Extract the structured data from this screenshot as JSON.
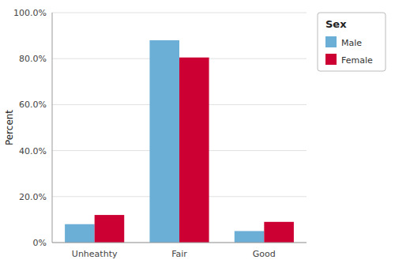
{
  "chart_data": {
    "type": "bar",
    "categories": [
      "Unheathty",
      "Fair",
      "Good"
    ],
    "series": [
      {
        "name": "Male",
        "color": "#6BAED6",
        "values": [
          8.0,
          88.0,
          5.0
        ]
      },
      {
        "name": "Female",
        "color": "#CC0033",
        "values": [
          12.0,
          80.5,
          9.0
        ]
      }
    ],
    "y_label": "Percent",
    "legend_title": "Sex",
    "ylim": [
      0,
      100
    ],
    "yticks": [
      {
        "value": 0,
        "label": "0%"
      },
      {
        "value": 20,
        "label": "20.0%"
      },
      {
        "value": 40,
        "label": "40.0%"
      },
      {
        "value": 60,
        "label": "60.0%"
      },
      {
        "value": 80,
        "label": "80.0%"
      },
      {
        "value": 100,
        "label": "100.0%"
      }
    ],
    "grid": true,
    "legend": "upper right"
  }
}
